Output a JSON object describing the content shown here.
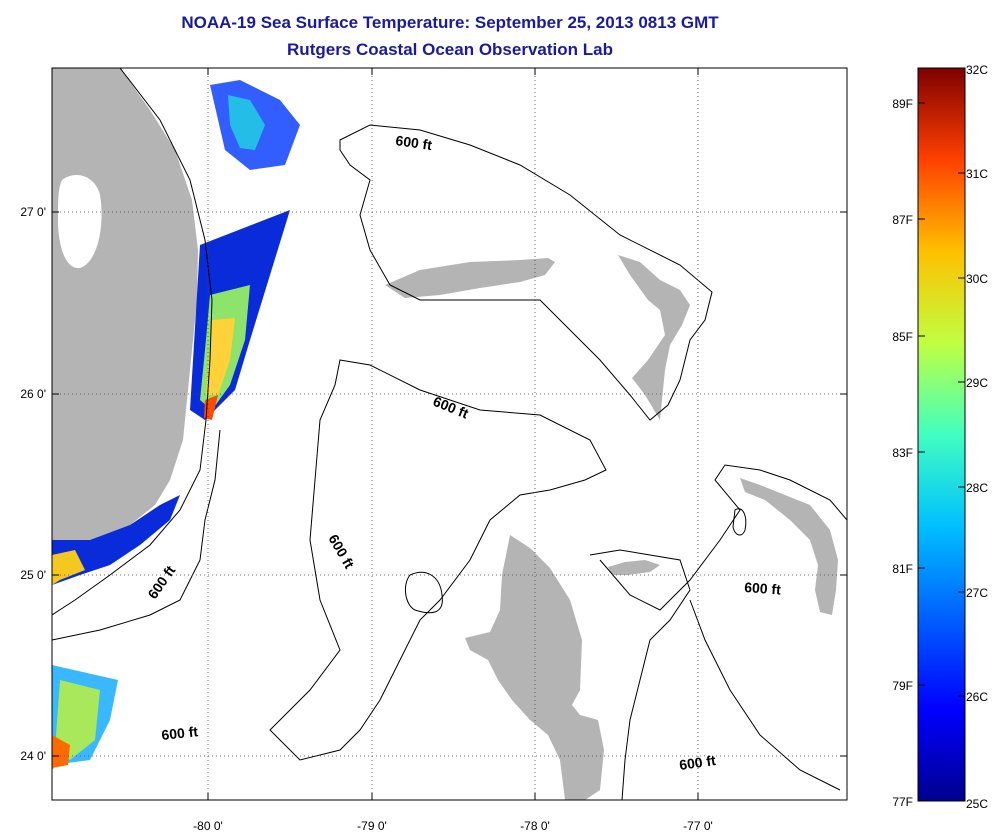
{
  "title": {
    "line1": "NOAA-19 Sea Surface Temperature:  September 25, 2013 0813 GMT",
    "line2": "Rutgers Coastal Ocean Observation Lab"
  },
  "colors": {
    "title": "#1a1aa0",
    "land": "#b4b4b4",
    "ocean": "#ffffff",
    "colormap": [
      "#00008f",
      "#0000ff",
      "#0080ff",
      "#00ffff",
      "#80ff80",
      "#ffff00",
      "#ff8000",
      "#ff0000",
      "#800000"
    ]
  },
  "map": {
    "x_ticks": [
      "-80 0'",
      "-79 0'",
      "-78 0'",
      "-77 0'"
    ],
    "y_ticks": [
      "27 0'",
      "26 0'",
      "25 0'",
      "24 0'"
    ],
    "contour_labels": [
      "600 ft",
      "600 ft",
      "600 ft",
      "600 ft",
      "600 ft",
      "600 ft"
    ]
  },
  "colorbar": {
    "celsius": [
      "32C",
      "31C",
      "30C",
      "29C",
      "28C",
      "27C",
      "26C",
      "25C"
    ],
    "fahrenheit": [
      "89F",
      "87F",
      "85F",
      "83F",
      "81F",
      "79F",
      "77F"
    ]
  }
}
